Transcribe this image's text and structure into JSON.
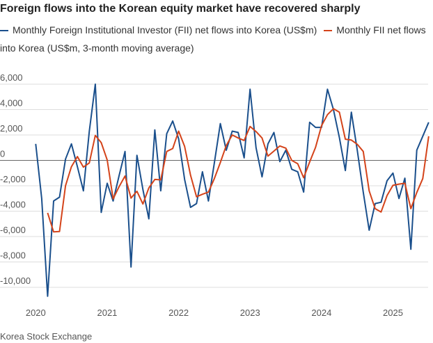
{
  "chart_data": {
    "type": "line",
    "title": "Foreign flows into the Korean equity market have recovered  sharply",
    "source": "Korea Stock Exchange",
    "x": [
      2020,
      2020.0833,
      2020.1667,
      2020.25,
      2020.3333,
      2020.4167,
      2020.5,
      2020.5833,
      2020.6667,
      2020.75,
      2020.8333,
      2020.9167,
      2021,
      2021.0833,
      2021.1667,
      2021.25,
      2021.3333,
      2021.4167,
      2021.5,
      2021.5833,
      2021.6667,
      2021.75,
      2021.8333,
      2021.9167,
      2022,
      2022.0833,
      2022.1667,
      2022.25,
      2022.3333,
      2022.4167,
      2022.5,
      2022.5833,
      2022.6667,
      2022.75,
      2022.8333,
      2022.9167,
      2023,
      2023.0833,
      2023.1667,
      2023.25,
      2023.3333,
      2023.4167,
      2023.5,
      2023.5833,
      2023.6667,
      2023.75,
      2023.8333,
      2023.9167,
      2024,
      2024.0833,
      2024.1667,
      2024.25,
      2024.3333,
      2024.4167,
      2024.5,
      2024.5833,
      2024.6667,
      2024.75,
      2024.8333,
      2024.9167,
      2025,
      2025.0833,
      2025.1667,
      2025.25,
      2025.3333,
      2025.4167,
      2025.5
    ],
    "series": [
      {
        "name": "Monthly Foreign Institutional Investor (FII) net flows into Korea (US$m)",
        "color": "#1a4f8c",
        "values": [
          1300,
          -3000,
          -10700,
          -3200,
          -2900,
          100,
          1300,
          -500,
          -2400,
          2300,
          6000,
          -4100,
          -1800,
          -3200,
          -1200,
          700,
          -8400,
          400,
          -2300,
          -4600,
          2400,
          -2400,
          2100,
          3100,
          1700,
          -1500,
          -3700,
          -3400,
          -900,
          -3200,
          -200,
          2900,
          800,
          2300,
          2200,
          200,
          5600,
          1000,
          -1300,
          1300,
          2200,
          -100,
          800,
          -700,
          -900,
          -2500,
          3000,
          2600,
          2600,
          5600,
          4000,
          1800,
          -800,
          3800,
          800,
          -2500,
          -5500,
          -3400,
          -3300,
          -1600,
          -1000,
          -3000,
          -1400,
          -7000,
          800,
          1900,
          3000
        ]
      },
      {
        "name": "Monthly FII net flows into Korea (US$m, 3-month moving average)",
        "color": "#d4431a",
        "values": [
          null,
          null,
          -4133,
          -5633,
          -5600,
          -2000,
          -500,
          300,
          -533,
          -200,
          1967,
          1400,
          33,
          -3033,
          -2067,
          -1233,
          -2967,
          -2433,
          -3433,
          -2167,
          -1500,
          -1533,
          700,
          933,
          2300,
          1100,
          -1167,
          -2867,
          -2667,
          -2500,
          -1433,
          -167,
          1167,
          2000,
          1767,
          1567,
          2667,
          2267,
          1767,
          333,
          733,
          1133,
          967,
          0,
          -267,
          -1367,
          -133,
          1033,
          2733,
          3600,
          4067,
          3800,
          1667,
          1600,
          1267,
          700,
          -2400,
          -3800,
          -4067,
          -2767,
          -1967,
          -1867,
          -1800,
          -3800,
          -2533,
          -1433,
          1900
        ]
      }
    ],
    "xlim": [
      2019.5,
      2025.56
    ],
    "xticks": [
      2020,
      2021,
      2022,
      2023,
      2024,
      2025
    ],
    "ylim": [
      -11480,
      6440
    ],
    "yticks": [
      {
        "value": 6000,
        "label": "6,000"
      },
      {
        "value": 4000,
        "label": "4,000"
      },
      {
        "value": 2000,
        "label": "2,000"
      },
      0,
      {
        "value": -2000,
        "label": "-2,000"
      },
      {
        "value": -4000,
        "label": "-4,000"
      },
      {
        "value": -6000,
        "label": "-6,000"
      },
      {
        "value": -8000,
        "label": "-8,000"
      },
      {
        "value": -10000,
        "label": "-10,000"
      }
    ],
    "grid": true
  }
}
